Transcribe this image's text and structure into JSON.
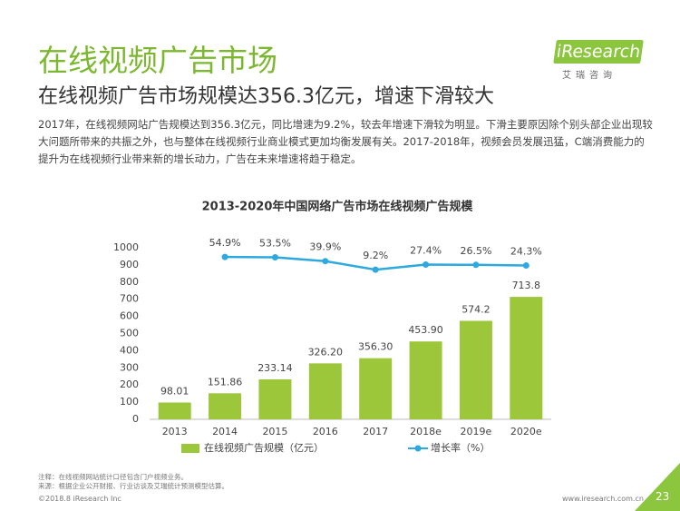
{
  "header": {
    "title": "在线视频广告市场",
    "subtitle": "在线视频广告市场规模达356.3亿元，增速下滑较大",
    "paragraph": "2017年，在线视频网站广告规模达到356.3亿元，同比增速为9.2%，较去年增速下滑较为明显。下滑主要原因除个别头部企业出现较大问题所带来的共振之外，也与整体在线视频行业商业模式更加均衡发展有关。2017-2018年，视频会员发展迅猛，C端消费能力的提升为在线视频行业带来新的增长动力，广告在未来增速将趋于稳定。",
    "logo": "iResearch",
    "logo_sub": "艾瑞咨询"
  },
  "chart_data": {
    "type": "bar",
    "title": "2013-2020年中国网络广告市场在线视频广告规模",
    "categories": [
      "2013",
      "2014",
      "2015",
      "2016",
      "2017",
      "2018e",
      "2019e",
      "2020e"
    ],
    "series": [
      {
        "name": "在线视频广告规模（亿元）",
        "color": "#9dc73b",
        "type": "bar",
        "values": [
          98.01,
          151.86,
          233.14,
          326.2,
          356.3,
          453.9,
          574.2,
          713.8
        ],
        "value_labels": [
          "98.01",
          "151.86",
          "233.14",
          "326.20",
          "356.30",
          "453.90",
          "574.2",
          "713.8"
        ]
      },
      {
        "name": "增长率（%）",
        "color": "#2ea9df",
        "type": "line",
        "axis": "y2",
        "values": [
          null,
          54.9,
          53.5,
          39.9,
          9.2,
          27.4,
          26.5,
          24.3
        ],
        "value_labels": [
          null,
          "54.9%",
          "53.5%",
          "39.9%",
          "9.2%",
          "27.4%",
          "26.5%",
          "24.3%"
        ]
      }
    ],
    "ylim": [
      0,
      1000
    ],
    "yticks": [
      0,
      100,
      200,
      300,
      400,
      500,
      600,
      700,
      800,
      900,
      1000
    ],
    "y2lim": [
      -530,
      88
    ]
  },
  "footer": {
    "notes": [
      "注释：在线视频网站统计口径包含门户视频业务。",
      "来源：根据企业公开财报、行业访谈及艾瑞统计预测模型估算。"
    ],
    "copyright": "©2018.8 iResearch Inc",
    "site": "www.iresearch.com.cn",
    "page": "23"
  }
}
